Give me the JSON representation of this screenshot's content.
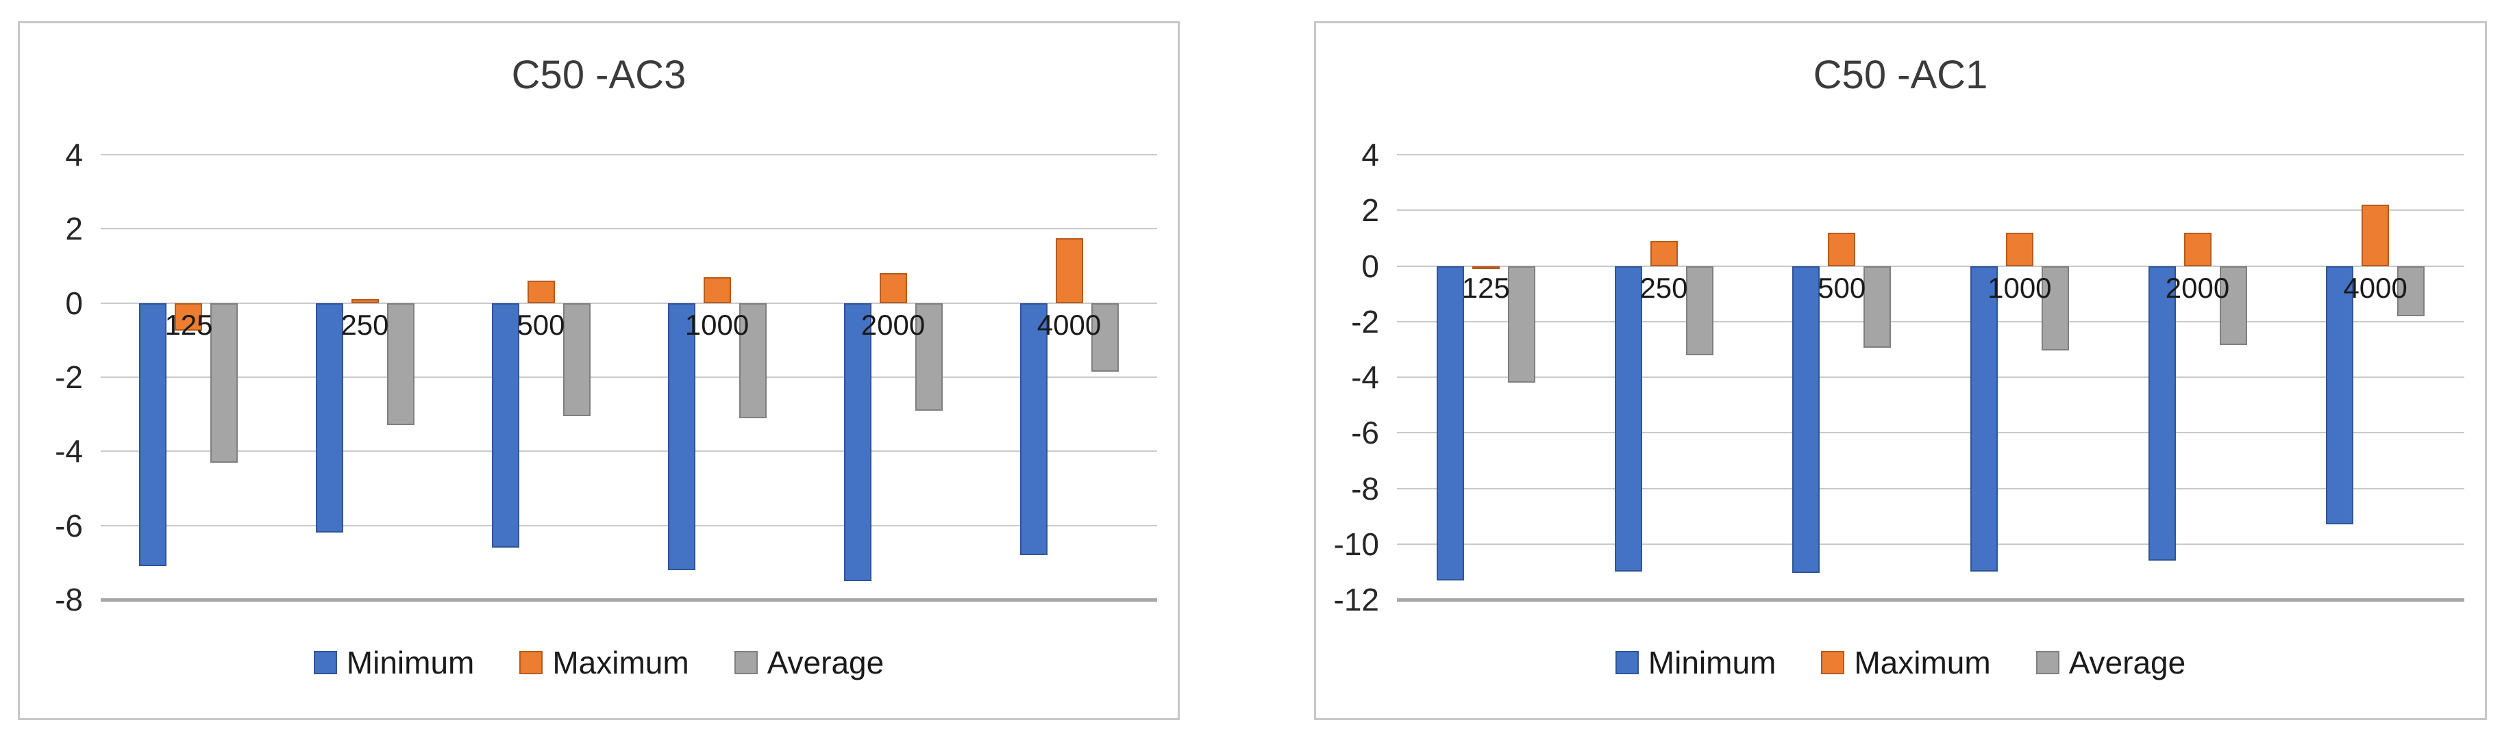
{
  "page": {
    "background": "#ffffff"
  },
  "chart_data": [
    {
      "type": "bar",
      "title": "C50 -AC3",
      "categories": [
        "125",
        "250",
        "500",
        "1000",
        "2000",
        "4000"
      ],
      "series": [
        {
          "name": "Minimum",
          "color": "#4472C4",
          "border": "#2F5597",
          "values": [
            -7.1,
            -6.2,
            -6.6,
            -7.2,
            -7.5,
            -6.8
          ]
        },
        {
          "name": "Maximum",
          "color": "#ED7D31",
          "border": "#B55B1E",
          "values": [
            -0.75,
            0.1,
            0.6,
            0.7,
            0.8,
            1.75
          ]
        },
        {
          "name": "Average",
          "color": "#A5A5A5",
          "border": "#7F7F7F",
          "values": [
            -4.3,
            -3.3,
            -3.05,
            -3.1,
            -2.9,
            -1.85
          ]
        }
      ],
      "xlabel": "",
      "ylabel": "",
      "ylim": [
        -8,
        4
      ],
      "yticks": [
        4,
        2,
        0,
        -2,
        -4,
        -6,
        -8
      ],
      "grid": true,
      "legend_position": "bottom"
    },
    {
      "type": "bar",
      "title": "C50 -AC1",
      "categories": [
        "125",
        "250",
        "500",
        "1000",
        "2000",
        "4000"
      ],
      "series": [
        {
          "name": "Minimum",
          "color": "#4472C4",
          "border": "#2F5597",
          "values": [
            -11.3,
            -11.0,
            -11.05,
            -11.0,
            -10.6,
            -9.3
          ]
        },
        {
          "name": "Maximum",
          "color": "#ED7D31",
          "border": "#B55B1E",
          "values": [
            -0.05,
            0.9,
            1.2,
            1.2,
            1.2,
            2.2
          ]
        },
        {
          "name": "Average",
          "color": "#A5A5A5",
          "border": "#7F7F7F",
          "values": [
            -4.2,
            -3.2,
            -2.95,
            -3.05,
            -2.85,
            -1.8
          ]
        }
      ],
      "xlabel": "",
      "ylabel": "",
      "ylim": [
        -12,
        4
      ],
      "yticks": [
        4,
        2,
        0,
        -2,
        -4,
        -6,
        -8,
        -10,
        -12
      ],
      "grid": true,
      "legend_position": "bottom"
    }
  ]
}
